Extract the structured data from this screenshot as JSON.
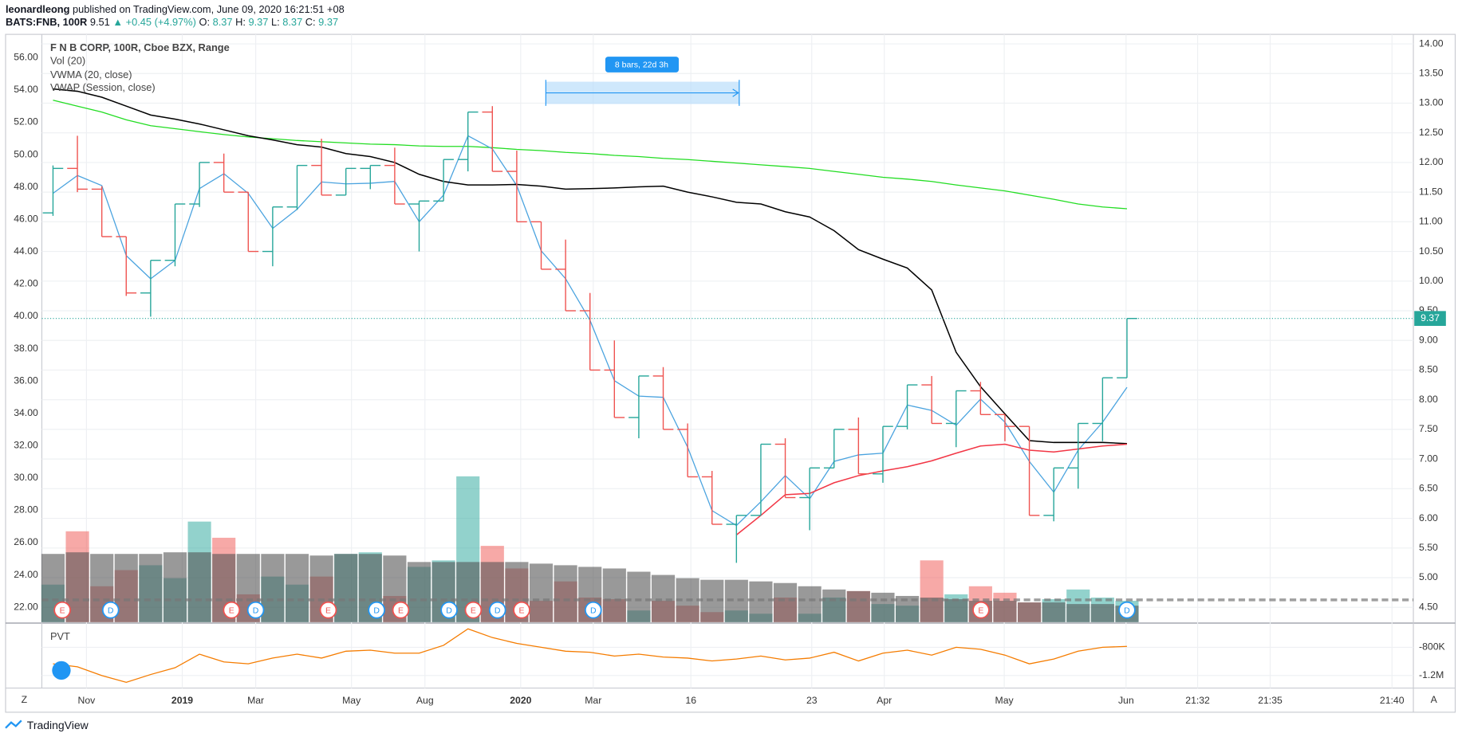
{
  "header": {
    "author": "leonardleong",
    "published": "published on TradingView.com, June 09, 2020 16:21:51 +08",
    "symbol_line": [
      "BATS:FNB, 100R",
      "9.51",
      "▲",
      "+0.45 (+4.97%)",
      "O:",
      "8.37",
      "H:",
      "9.37",
      "L:",
      "8.37",
      "C:",
      "9.37"
    ]
  },
  "chart_data": {
    "type": "ohlc",
    "title": "F N B CORP, 100R, Cboe BZX, Range",
    "legend": [
      "Vol (20)",
      "VWMA (20, close)",
      "VWAP (Session, close)"
    ],
    "ohlc": {
      "axis": "y2",
      "up_color": "#26a69a",
      "down_color": "#ef5350",
      "open": [
        11.15,
        11.9,
        11.55,
        10.75,
        9.8,
        10.35,
        11.3,
        12.0,
        11.5,
        10.5,
        11.25,
        11.95,
        11.45,
        11.9,
        11.95,
        11.3,
        11.35,
        12.05,
        12.85,
        11.85,
        11.0,
        10.2,
        9.5,
        8.5,
        7.7,
        8.4,
        7.5,
        6.7,
        5.9,
        6.05,
        7.25,
        6.35,
        6.85,
        7.5,
        6.75,
        7.55,
        8.25,
        7.6,
        8.15,
        7.75,
        7.55,
        6.05,
        6.85,
        7.6,
        8.37
      ],
      "high": [
        11.95,
        12.45,
        11.6,
        10.75,
        10.35,
        11.3,
        12.0,
        12.15,
        11.5,
        11.25,
        11.95,
        12.4,
        11.9,
        11.95,
        12.25,
        11.35,
        12.05,
        12.85,
        12.95,
        12.2,
        11.0,
        10.7,
        9.8,
        9.0,
        8.4,
        8.55,
        7.6,
        6.8,
        6.05,
        7.25,
        7.35,
        6.85,
        7.5,
        7.7,
        7.55,
        8.25,
        8.4,
        8.15,
        8.3,
        7.75,
        7.55,
        6.85,
        7.6,
        8.37,
        9.37
      ],
      "low": [
        11.1,
        11.5,
        10.75,
        9.75,
        9.4,
        10.25,
        11.25,
        11.5,
        10.5,
        10.25,
        11.2,
        11.45,
        11.45,
        11.55,
        11.3,
        10.5,
        11.35,
        11.85,
        11.85,
        11.0,
        10.2,
        9.5,
        8.5,
        7.7,
        7.35,
        7.5,
        6.7,
        5.9,
        5.25,
        6.05,
        6.35,
        5.8,
        6.85,
        6.75,
        6.6,
        7.5,
        7.6,
        7.2,
        7.75,
        7.3,
        6.05,
        5.95,
        6.5,
        7.3,
        8.37
      ],
      "close": [
        11.9,
        11.55,
        10.75,
        9.8,
        10.35,
        11.3,
        12.0,
        11.5,
        10.5,
        11.25,
        11.95,
        11.45,
        11.9,
        11.95,
        11.3,
        11.35,
        12.05,
        12.85,
        11.85,
        11.0,
        10.2,
        9.5,
        8.5,
        7.7,
        8.4,
        7.5,
        6.7,
        5.9,
        6.05,
        7.25,
        6.35,
        6.85,
        7.5,
        6.75,
        7.55,
        8.25,
        7.6,
        8.15,
        7.75,
        7.55,
        6.05,
        6.85,
        7.6,
        8.37,
        9.37
      ]
    },
    "volume": {
      "up_color": "#26a69a",
      "down_color": "#ef5350",
      "ma_color": "#555555",
      "values": [
        23.4,
        26.7,
        23.3,
        24.3,
        24.6,
        23.8,
        27.3,
        26.3,
        22.8,
        23.9,
        23.4,
        23.9,
        25.3,
        25.4,
        22.7,
        24.5,
        24.9,
        30.1,
        25.8,
        24.4,
        22.4,
        23.6,
        22.6,
        22.5,
        21.8,
        22.4,
        22.1,
        21.7,
        21.8,
        21.6,
        22.6,
        21.6,
        22.6,
        23.0,
        22.2,
        22.1,
        24.9,
        22.8,
        23.3,
        22.9,
        22.3,
        22.5,
        23.1,
        22.6,
        22.4
      ],
      "ma": [
        25.3,
        25.4,
        25.3,
        25.3,
        25.3,
        25.4,
        25.4,
        25.3,
        25.3,
        25.3,
        25.3,
        25.2,
        25.3,
        25.3,
        25.2,
        24.8,
        24.8,
        24.8,
        24.8,
        24.8,
        24.7,
        24.6,
        24.5,
        24.4,
        24.2,
        24.0,
        23.8,
        23.7,
        23.7,
        23.6,
        23.5,
        23.3,
        23.1,
        23.0,
        22.9,
        22.7,
        22.6,
        22.5,
        22.4,
        22.4,
        22.3,
        22.3,
        22.2,
        22.2,
        22.1
      ]
    },
    "series": [
      {
        "name": "VWMA (20, close)",
        "color": "#000000",
        "axis": "y2",
        "values": [
          13.24,
          13.2,
          13.1,
          12.95,
          12.8,
          12.73,
          12.65,
          12.55,
          12.45,
          12.38,
          12.3,
          12.26,
          12.15,
          12.1,
          12.0,
          11.8,
          11.68,
          11.62,
          11.62,
          11.63,
          11.6,
          11.55,
          11.56,
          11.57,
          11.59,
          11.6,
          11.5,
          11.42,
          11.33,
          11.3,
          11.17,
          11.08,
          10.85,
          10.53,
          10.37,
          10.22,
          9.85,
          8.8,
          8.22,
          7.76,
          7.31,
          7.28,
          7.28,
          7.28,
          7.26
        ]
      },
      {
        "name": "VWAP (Session, close)",
        "color": "#f23645",
        "axis": "y2",
        "values": [
          null,
          null,
          null,
          null,
          null,
          null,
          null,
          null,
          null,
          null,
          null,
          null,
          null,
          null,
          null,
          null,
          null,
          null,
          null,
          null,
          null,
          null,
          null,
          null,
          null,
          null,
          null,
          null,
          5.72,
          6.05,
          6.4,
          6.42,
          6.6,
          6.72,
          6.8,
          6.87,
          6.97,
          7.1,
          7.22,
          7.25,
          7.15,
          7.12,
          7.17,
          7.22,
          7.25
        ]
      }
    ],
    "overlays": [
      {
        "color": "#22dd22",
        "axis": "y2",
        "values": [
          13.05,
          12.95,
          12.85,
          12.72,
          12.62,
          12.57,
          12.52,
          12.47,
          12.43,
          12.4,
          12.37,
          12.35,
          12.33,
          12.31,
          12.3,
          12.28,
          12.27,
          12.27,
          12.25,
          12.22,
          12.2,
          12.17,
          12.15,
          12.12,
          12.1,
          12.07,
          12.05,
          12.02,
          11.99,
          11.96,
          11.93,
          11.9,
          11.85,
          11.8,
          11.75,
          11.72,
          11.68,
          11.62,
          11.57,
          11.52,
          11.45,
          11.38,
          11.3,
          11.25,
          11.22
        ]
      },
      {
        "color": "#4aa3df",
        "axis": "y2",
        "values": [
          11.48,
          11.78,
          11.61,
          10.43,
          10.04,
          10.35,
          11.56,
          11.81,
          11.48,
          10.89,
          11.21,
          11.67,
          11.64,
          11.65,
          11.68,
          11.0,
          11.45,
          12.45,
          12.23,
          11.61,
          10.51,
          10.04,
          9.34,
          8.32,
          8.06,
          8.04,
          7.2,
          6.13,
          5.88,
          6.28,
          6.72,
          6.33,
          6.96,
          7.07,
          7.1,
          7.91,
          7.82,
          7.57,
          8.01,
          7.62,
          6.96,
          6.44,
          7.15,
          7.62,
          8.21
        ]
      }
    ],
    "ylim": [
      21.08,
      57.44
    ],
    "yticks": [
      {
        "value": 22,
        "label": "22.00"
      },
      {
        "value": 24,
        "label": "24.00"
      },
      {
        "value": 26,
        "label": "26.00"
      },
      {
        "value": 28,
        "label": "28.00"
      },
      {
        "value": 30,
        "label": "30.00"
      },
      {
        "value": 32,
        "label": "32.00"
      },
      {
        "value": 34,
        "label": "34.00"
      },
      {
        "value": 36,
        "label": "36.00"
      },
      {
        "value": 38,
        "label": "38.00"
      },
      {
        "value": 40,
        "label": "40.00"
      },
      {
        "value": 42,
        "label": "42.00"
      },
      {
        "value": 44,
        "label": "44.00"
      },
      {
        "value": 46,
        "label": "46.00"
      },
      {
        "value": 48,
        "label": "48.00"
      },
      {
        "value": 50,
        "label": "50.00"
      },
      {
        "value": 52,
        "label": "52.00"
      },
      {
        "value": 54,
        "label": "54.00"
      },
      {
        "value": 56,
        "label": "56.00"
      }
    ],
    "y2lim": [
      4.25,
      14.16
    ],
    "y2ticks": [
      {
        "value": 4.5,
        "label": "4.50"
      },
      {
        "value": 5,
        "label": "5.00"
      },
      {
        "value": 5.5,
        "label": "5.50"
      },
      {
        "value": 6,
        "label": "6.00"
      },
      {
        "value": 6.5,
        "label": "6.50"
      },
      {
        "value": 7,
        "label": "7.00"
      },
      {
        "value": 7.5,
        "label": "7.50"
      },
      {
        "value": 8,
        "label": "8.00"
      },
      {
        "value": 8.5,
        "label": "8.50"
      },
      {
        "value": 9,
        "label": "9.00"
      },
      {
        "value": 9.5,
        "label": "9.50"
      },
      {
        "value": 10,
        "label": "10.00"
      },
      {
        "value": 10.5,
        "label": "10.50"
      },
      {
        "value": 11,
        "label": "11.00"
      },
      {
        "value": 11.5,
        "label": "11.50"
      },
      {
        "value": 12,
        "label": "12.00"
      },
      {
        "value": 12.5,
        "label": "12.50"
      },
      {
        "value": 13,
        "label": "13.00"
      },
      {
        "value": 13.5,
        "label": "13.50"
      },
      {
        "value": 14,
        "label": "14.00"
      }
    ],
    "grid": true,
    "x_labels": [
      "Nov",
      "2019",
      "Mar",
      "May",
      "Aug",
      "2020",
      "Mar",
      "16",
      "23",
      "Apr",
      "May",
      "Jun",
      "21:32",
      "21:35",
      "21:40"
    ],
    "events": [
      "E",
      "D",
      "E",
      "D",
      "E",
      "D",
      "E",
      "D",
      "E",
      "D",
      "E",
      "D",
      "E",
      "D"
    ],
    "measure_label": "8 bars, 22d 3h",
    "pvt": {
      "title": "PVT",
      "color": "#f57c00",
      "ylim": [
        -1365000,
        -469000
      ],
      "yticks": [
        {
          "value": -800000,
          "label": "-800K"
        },
        {
          "value": -1200000,
          "label": "-1.2M"
        }
      ],
      "values": [
        -1034000,
        -1076000,
        -1200000,
        -1296000,
        -1186000,
        -1090000,
        -897000,
        -1007000,
        -1034000,
        -952000,
        -897000,
        -952000,
        -855000,
        -841000,
        -883000,
        -883000,
        -772000,
        -538000,
        -662000,
        -745000,
        -800000,
        -855000,
        -869000,
        -924000,
        -897000,
        -938000,
        -952000,
        -993000,
        -966000,
        -924000,
        -979000,
        -952000,
        -869000,
        -993000,
        -883000,
        -841000,
        -910000,
        -800000,
        -828000,
        -910000,
        -1034000,
        -966000,
        -855000,
        -800000,
        -786000
      ]
    }
  },
  "footer": {
    "logo": "TradingView",
    "left_button": "Z",
    "right_button": "A"
  }
}
